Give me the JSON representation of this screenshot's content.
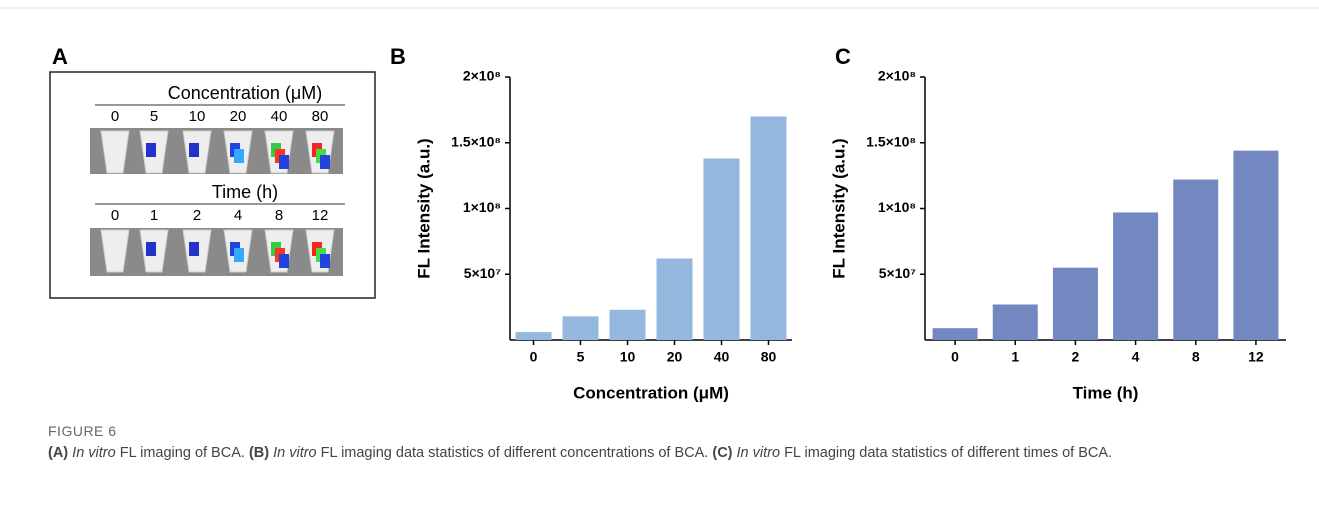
{
  "panel_a": {
    "label": "A",
    "concentration": {
      "title": "Concentration (μM)",
      "labels": [
        "0",
        "5",
        "10",
        "20",
        "40",
        "80"
      ]
    },
    "time": {
      "title": "Time (h)",
      "labels": [
        "0",
        "1",
        "2",
        "4",
        "8",
        "12"
      ]
    }
  },
  "chart_data": [
    {
      "type": "bar",
      "label": "B",
      "xlabel": "Concentration (μM)",
      "ylabel": "FL Intensity (a.u.)",
      "categories": [
        "0",
        "5",
        "10",
        "20",
        "40",
        "80"
      ],
      "values": [
        6000000,
        18000000,
        23000000,
        62000000,
        138000000,
        170000000
      ],
      "color": "#93b7dd",
      "ylim": [
        0,
        200000000
      ],
      "yticks": [
        {
          "value": 50000000,
          "label": "5×10⁷"
        },
        {
          "value": 100000000,
          "label": "1×10⁸"
        },
        {
          "value": 150000000,
          "label": "1.5×10⁸"
        },
        {
          "value": 200000000,
          "label": "2×10⁸"
        }
      ]
    },
    {
      "type": "bar",
      "label": "C",
      "xlabel": "Time (h)",
      "ylabel": "FL Intensity (a.u.)",
      "categories": [
        "0",
        "1",
        "2",
        "4",
        "8",
        "12"
      ],
      "values": [
        9000000,
        27000000,
        55000000,
        97000000,
        122000000,
        144000000
      ],
      "color": "#7387c0",
      "ylim": [
        0,
        200000000
      ],
      "yticks": [
        {
          "value": 50000000,
          "label": "5×10⁷"
        },
        {
          "value": 100000000,
          "label": "1×10⁸"
        },
        {
          "value": 150000000,
          "label": "1.5×10⁸"
        },
        {
          "value": 200000000,
          "label": "2×10⁸"
        }
      ]
    }
  ],
  "caption": {
    "figure": "FIGURE 6",
    "parts": [
      "(A)",
      "In vitro",
      "FL imaging of BCA.",
      "(B)",
      "In vitro",
      "FL imaging data statistics of different concentrations of BCA.",
      "(C)",
      "In vitro",
      "FL imaging data statistics of different times of BCA."
    ]
  }
}
